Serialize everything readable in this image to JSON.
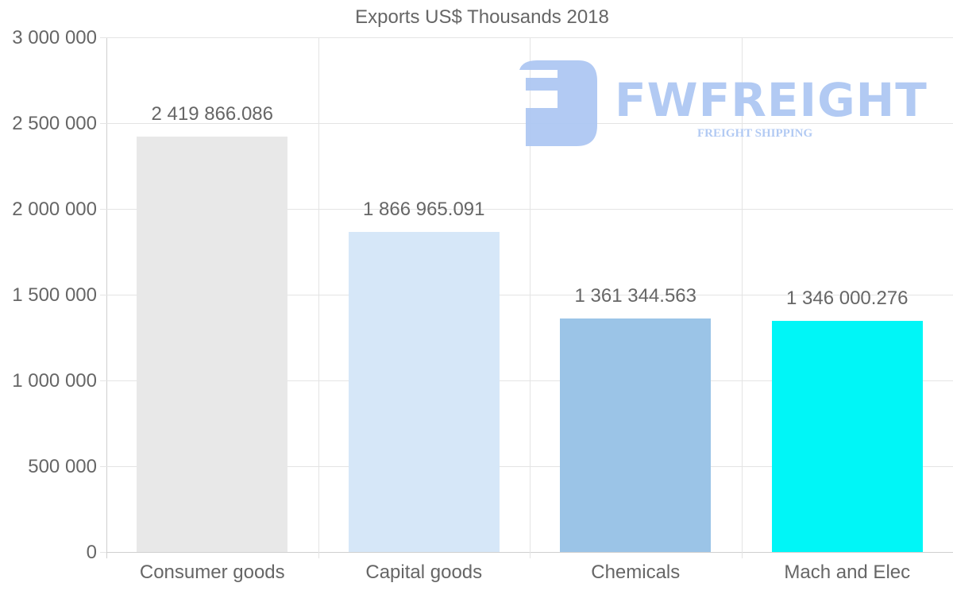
{
  "chart_data": {
    "type": "bar",
    "title": "Exports US$ Thousands 2018",
    "categories": [
      "Consumer goods",
      "Capital goods",
      "Chemicals",
      "Mach and Elec"
    ],
    "values": [
      2419866.086,
      1866965.091,
      1361344.563,
      1346000.276
    ],
    "value_labels": [
      "2 419 866.086",
      "1 866 965.091",
      "1 361 344.563",
      "1 346 000.276"
    ],
    "bar_colors": [
      "#e8e8e8",
      "#d6e7f8",
      "#9bc4e7",
      "#00f6f7"
    ],
    "xlabel": "",
    "ylabel": "",
    "ylim": [
      0,
      3000000
    ],
    "yticks": [
      0,
      500000,
      1000000,
      1500000,
      2000000,
      2500000,
      3000000
    ],
    "ytick_labels": [
      "0",
      "500 000",
      "1 000 000",
      "1 500 000",
      "2 000 000",
      "2 500 000",
      "3 000 000"
    ],
    "grid": true,
    "legend": "none"
  },
  "watermark": {
    "brand": "FWFREIGHT",
    "tagline": "FREIGHT SHIPPING",
    "color": "#aec8f3"
  }
}
